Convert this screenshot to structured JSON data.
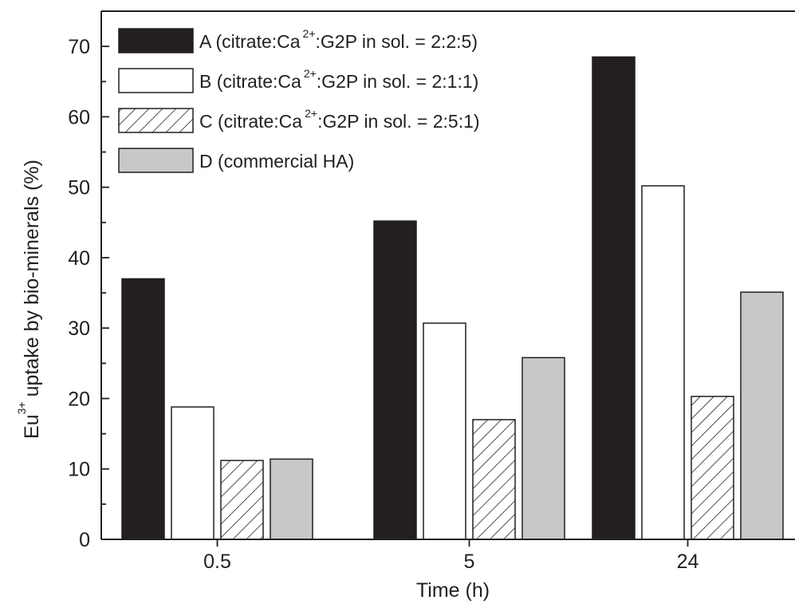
{
  "chart_data": {
    "type": "bar",
    "categories": [
      "0.5",
      "5",
      "24"
    ],
    "series": [
      {
        "name": "A (citrate:Ca2+:G2P in sol. = 2:2:5)",
        "fill": "#231f20",
        "pattern": "solid",
        "values": [
          37.0,
          45.2,
          68.5
        ]
      },
      {
        "name": "B (citrate:Ca2+:G2P in sol. = 2:1:1)",
        "fill": "#ffffff",
        "pattern": "solid",
        "values": [
          18.8,
          30.7,
          50.2
        ]
      },
      {
        "name": "C (citrate:Ca2+:G2P in sol. = 2:5:1)",
        "fill": "#ffffff",
        "pattern": "hatch",
        "values": [
          11.2,
          17.0,
          20.3
        ]
      },
      {
        "name": "D (commercial HA)",
        "fill": "#c8c8c9",
        "pattern": "solid",
        "values": [
          11.4,
          25.8,
          35.1
        ]
      }
    ],
    "xlabel": "Time (h)",
    "ylabel": {
      "prefix": "Eu",
      "superscript": "3+",
      "suffix": "uptake by bio-minerals (%)"
    },
    "ylim": [
      0,
      75
    ],
    "yticks": [
      0,
      10,
      20,
      30,
      40,
      50,
      60,
      70
    ],
    "grid": false,
    "legend_position": "top-left",
    "legend": [
      {
        "pre": "A (citrate:Ca",
        "sup": "2+",
        "post": ":G2P in sol. = 2:2:5)"
      },
      {
        "pre": "B (citrate:Ca",
        "sup": "2+",
        "post": ":G2P in sol. = 2:1:1)"
      },
      {
        "pre": "C (citrate:Ca",
        "sup": "2+",
        "post": ":G2P in sol. = 2:5:1)"
      },
      {
        "pre": "D (commercial HA)",
        "sup": "",
        "post": ""
      }
    ]
  },
  "colors": {
    "axis": "#231f20",
    "bar_dark": "#231f20",
    "bar_grey": "#c8c8c9"
  }
}
